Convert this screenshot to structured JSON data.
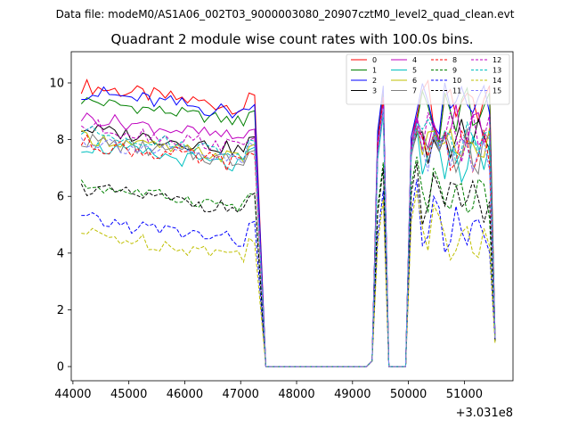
{
  "suptitle": "Data file: modeM0/AS1A06_002T03_9000003080_20907cztM0_level2_quad_clean.evt",
  "chart_data": {
    "type": "line",
    "title": "Quadrant 2 module wise count rates with 100.0s bins.",
    "xlabel": "",
    "ylabel": "",
    "x_offset_label": "+3.031e8",
    "xlim": [
      43970,
      51870
    ],
    "ylim": [
      -0.5,
      11.1
    ],
    "x_ticks": [
      44000,
      45000,
      46000,
      47000,
      48000,
      49000,
      50000,
      51000
    ],
    "y_ticks": [
      0,
      2,
      4,
      6,
      8,
      10
    ],
    "grid": false,
    "legend_placement": "top-right",
    "legend_columns": 4,
    "x_segments": [
      {
        "start": 44150,
        "end": 47250,
        "step": 100
      },
      {
        "start": 47450,
        "end": 49250,
        "step": 300
      },
      {
        "start": 49350,
        "end": 49950,
        "step": 100
      },
      {
        "start": 50050,
        "end": 51550,
        "step": 100
      }
    ],
    "gap_value": 0,
    "series": [
      {
        "name": "0",
        "color": "#ff0000",
        "dash": false,
        "level1": 9.9,
        "amp1": 0.28,
        "ramp": 9.5,
        "peaks": [
          9.7,
          8.1,
          8.8,
          8.5,
          8.0,
          1.0
        ]
      },
      {
        "name": "1",
        "color": "#008000",
        "dash": false,
        "level1": 9.4,
        "amp1": 0.22,
        "ramp": 9.0,
        "peaks": [
          9.6,
          7.9,
          8.6,
          8.4,
          7.9,
          1.0
        ]
      },
      {
        "name": "2",
        "color": "#0000ff",
        "dash": false,
        "level1": 9.7,
        "amp1": 0.3,
        "ramp": 9.2,
        "peaks": [
          9.9,
          8.1,
          9.0,
          8.5,
          8.2,
          1.0
        ]
      },
      {
        "name": "3",
        "color": "#000000",
        "dash": false,
        "level1": 8.4,
        "amp1": 0.25,
        "ramp": 8.0,
        "peaks": [
          9.0,
          7.5,
          8.2,
          8.0,
          7.6,
          0.9
        ]
      },
      {
        "name": "4",
        "color": "#bf00bf",
        "dash": false,
        "level1": 8.8,
        "amp1": 0.25,
        "ramp": 8.4,
        "peaks": [
          9.5,
          7.8,
          8.8,
          8.6,
          8.0,
          1.0
        ]
      },
      {
        "name": "5",
        "color": "#00bfbf",
        "dash": false,
        "level1": 7.8,
        "amp1": 0.28,
        "ramp": 7.6,
        "peaks": [
          8.9,
          7.5,
          8.4,
          8.2,
          7.7,
          1.0
        ]
      },
      {
        "name": "6",
        "color": "#bfbf00",
        "dash": false,
        "level1": 8.1,
        "amp1": 0.25,
        "ramp": 7.8,
        "peaks": [
          9.1,
          7.6,
          8.5,
          8.3,
          7.8,
          1.0
        ]
      },
      {
        "name": "7",
        "color": "#808080",
        "dash": false,
        "level1": 8.0,
        "amp1": 0.3,
        "ramp": 7.7,
        "peaks": [
          9.0,
          7.4,
          8.3,
          8.1,
          7.6,
          1.0
        ]
      },
      {
        "name": "8",
        "color": "#ff0000",
        "dash": true,
        "level1": 7.9,
        "amp1": 0.3,
        "ramp": 7.5,
        "peaks": [
          9.4,
          7.6,
          8.4,
          8.2,
          7.8,
          1.0
        ]
      },
      {
        "name": "9",
        "color": "#008000",
        "dash": true,
        "level1": 6.4,
        "amp1": 0.22,
        "ramp": 6.1,
        "peaks": [
          7.2,
          6.4,
          7.4,
          7.0,
          6.5,
          0.9
        ]
      },
      {
        "name": "10",
        "color": "#0000ff",
        "dash": true,
        "level1": 5.2,
        "amp1": 0.28,
        "ramp": 5.0,
        "peaks": [
          6.2,
          5.4,
          6.6,
          6.0,
          5.6,
          0.9
        ]
      },
      {
        "name": "11",
        "color": "#000000",
        "dash": true,
        "level1": 6.3,
        "amp1": 0.25,
        "ramp": 6.0,
        "peaks": [
          7.0,
          6.1,
          7.2,
          6.8,
          6.3,
          0.9
        ]
      },
      {
        "name": "12",
        "color": "#bf00bf",
        "dash": true,
        "level1": 8.5,
        "amp1": 0.28,
        "ramp": 8.1,
        "peaks": [
          9.2,
          7.7,
          8.7,
          8.4,
          7.9,
          1.0
        ]
      },
      {
        "name": "13",
        "color": "#00bfbf",
        "dash": true,
        "level1": 8.3,
        "amp1": 0.25,
        "ramp": 7.9,
        "peaks": [
          9.0,
          7.6,
          8.6,
          8.3,
          7.8,
          1.0
        ]
      },
      {
        "name": "14",
        "color": "#bfbf00",
        "dash": true,
        "level1": 4.7,
        "amp1": 0.28,
        "ramp": 4.5,
        "peaks": [
          5.9,
          5.1,
          6.2,
          5.7,
          5.3,
          0.8
        ]
      },
      {
        "name": "15",
        "color": "#8080ff",
        "dash": true,
        "level1": 8.0,
        "amp1": 0.3,
        "ramp": 7.8,
        "peaks": [
          9.1,
          7.5,
          8.5,
          8.2,
          7.7,
          1.0
        ]
      }
    ]
  }
}
